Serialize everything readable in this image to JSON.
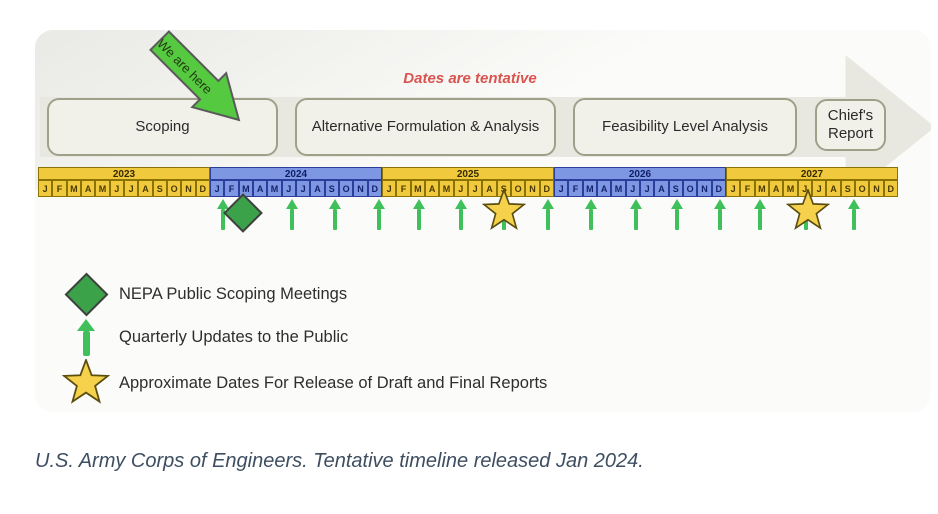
{
  "note": "Dates are tentative",
  "we_are_here_label": "We are here",
  "phases": [
    {
      "label": "Scoping"
    },
    {
      "label": "Alternative Formulation & Analysis"
    },
    {
      "label": "Feasibility Level Analysis"
    },
    {
      "label": "Chief's Report"
    }
  ],
  "timeline": {
    "month_letters": [
      "J",
      "F",
      "M",
      "A",
      "M",
      "J",
      "J",
      "A",
      "S",
      "O",
      "N",
      "D"
    ],
    "years": [
      {
        "label": "2023",
        "scheme": "yellow"
      },
      {
        "label": "2024",
        "scheme": "blue"
      },
      {
        "label": "2025",
        "scheme": "yellow"
      },
      {
        "label": "2026",
        "scheme": "blue"
      },
      {
        "label": "2027",
        "scheme": "yellow"
      }
    ]
  },
  "markers": {
    "scoping_meetings": [
      {
        "date": "Feb–Mar 2024",
        "month_pos": 14.3
      }
    ],
    "quarterly_updates": [
      {
        "date": "Jan 2024",
        "month_pos": 12.9
      },
      {
        "date": "Jun 2024",
        "month_pos": 17.7
      },
      {
        "date": "Sep 2024",
        "month_pos": 20.7
      },
      {
        "date": "Dec 2024",
        "month_pos": 23.8
      },
      {
        "date": "Mar 2025",
        "month_pos": 26.6
      },
      {
        "date": "Jun 2025",
        "month_pos": 29.5
      },
      {
        "date": "Sep 2025",
        "month_pos": 32.5
      },
      {
        "date": "Dec 2025",
        "month_pos": 35.6
      },
      {
        "date": "Mar 2026",
        "month_pos": 38.6
      },
      {
        "date": "Jun 2026",
        "month_pos": 41.7
      },
      {
        "date": "Sep 2026",
        "month_pos": 44.6
      },
      {
        "date": "Dec 2026",
        "month_pos": 47.6
      },
      {
        "date": "Mar 2027",
        "month_pos": 50.4
      },
      {
        "date": "Jun 2027",
        "month_pos": 53.6
      },
      {
        "date": "Sep 2027",
        "month_pos": 56.9
      }
    ],
    "report_releases": [
      {
        "date": "Sep 2025",
        "month_pos": 32.5
      },
      {
        "date": "Jun–Jul 2027",
        "month_pos": 53.7
      }
    ]
  },
  "legend": [
    {
      "symbol": "diamond",
      "label": "NEPA Public Scoping Meetings"
    },
    {
      "symbol": "arrow",
      "label": "Quarterly Updates to the Public"
    },
    {
      "symbol": "star",
      "label": "Approximate Dates For Release of Draft and Final Reports"
    }
  ],
  "colors": {
    "year_yellow": "#f1c93c",
    "year_blue": "#7e97e2",
    "marker_green": "#3fc05b",
    "diamond_green": "#3ba24a",
    "star_gold": "#f6d14c",
    "note_red": "#d9534f",
    "caption_text": "#3e4e61"
  },
  "caption": "U.S. Army Corps of Engineers. Tentative timeline released Jan 2024."
}
